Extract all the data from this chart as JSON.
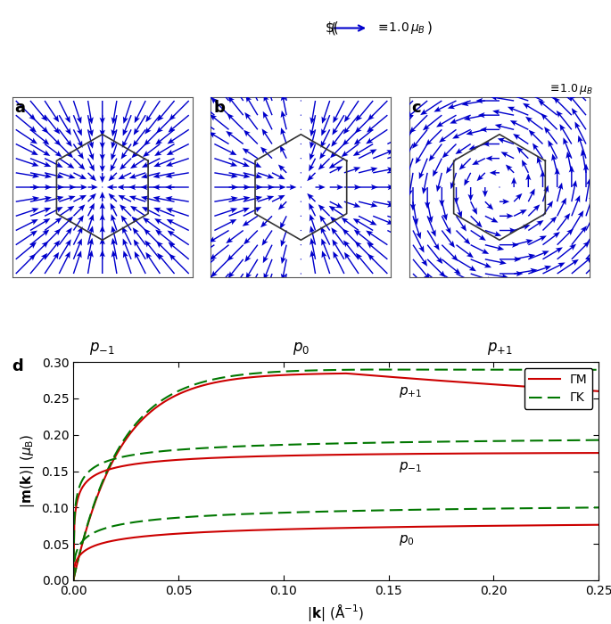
{
  "panel_labels": [
    "a",
    "b",
    "c",
    "d"
  ],
  "arrow_color": "#0000CC",
  "hexagon_color": "#000000",
  "line_color_GM": "#CC0000",
  "line_color_GK": "#007700",
  "xlabel": "|\\mathbf{k}| (\\AA^{-1})",
  "ylabel": "|\\mathbf{m}(\\mathbf{k})| (\\mu_B)",
  "xlim": [
    0,
    0.25
  ],
  "ylim": [
    0,
    0.3
  ],
  "xticks": [
    0,
    0.05,
    0.1,
    0.15,
    0.2,
    0.25
  ],
  "yticks": [
    0.0,
    0.05,
    0.1,
    0.15,
    0.2,
    0.25,
    0.3
  ],
  "legend_entries": [
    "ΓM",
    "ΓK"
  ],
  "background": "#ffffff"
}
